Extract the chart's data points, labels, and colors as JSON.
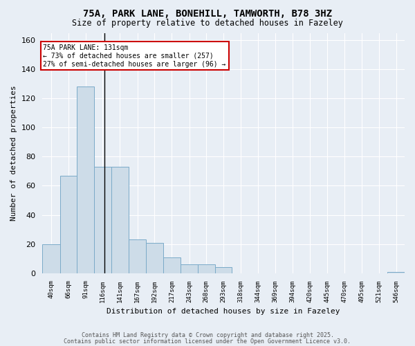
{
  "title1": "75A, PARK LANE, BONEHILL, TAMWORTH, B78 3HZ",
  "title2": "Size of property relative to detached houses in Fazeley",
  "xlabel": "Distribution of detached houses by size in Fazeley",
  "ylabel": "Number of detached properties",
  "bin_labels": [
    "40sqm",
    "66sqm",
    "91sqm",
    "116sqm",
    "141sqm",
    "167sqm",
    "192sqm",
    "217sqm",
    "243sqm",
    "268sqm",
    "293sqm",
    "318sqm",
    "344sqm",
    "369sqm",
    "394sqm",
    "420sqm",
    "445sqm",
    "470sqm",
    "495sqm",
    "521sqm",
    "546sqm"
  ],
  "bin_edges": [
    40,
    65.5,
    90.5,
    115.5,
    140.5,
    166.5,
    191.5,
    216.5,
    242.5,
    267.5,
    292.5,
    317.5,
    343.5,
    368.5,
    393.5,
    419.5,
    444.5,
    469.5,
    494.5,
    520.5,
    545.5,
    570.5
  ],
  "bar_heights": [
    20,
    67,
    128,
    73,
    73,
    23,
    21,
    11,
    6,
    6,
    4,
    0,
    0,
    0,
    0,
    0,
    0,
    0,
    0,
    0,
    1
  ],
  "bar_color": "#cddce8",
  "bar_edge_color": "#7aaac8",
  "bg_color": "#e8eef5",
  "grid_color": "#ffffff",
  "property_line_x": 131,
  "annotation_text": "75A PARK LANE: 131sqm\n← 73% of detached houses are smaller (257)\n27% of semi-detached houses are larger (96) →",
  "annotation_box_color": "#ffffff",
  "annotation_box_edge": "#cc0000",
  "ylim": [
    0,
    165
  ],
  "yticks": [
    0,
    20,
    40,
    60,
    80,
    100,
    120,
    140,
    160
  ],
  "footer1": "Contains HM Land Registry data © Crown copyright and database right 2025.",
  "footer2": "Contains public sector information licensed under the Open Government Licence v3.0."
}
